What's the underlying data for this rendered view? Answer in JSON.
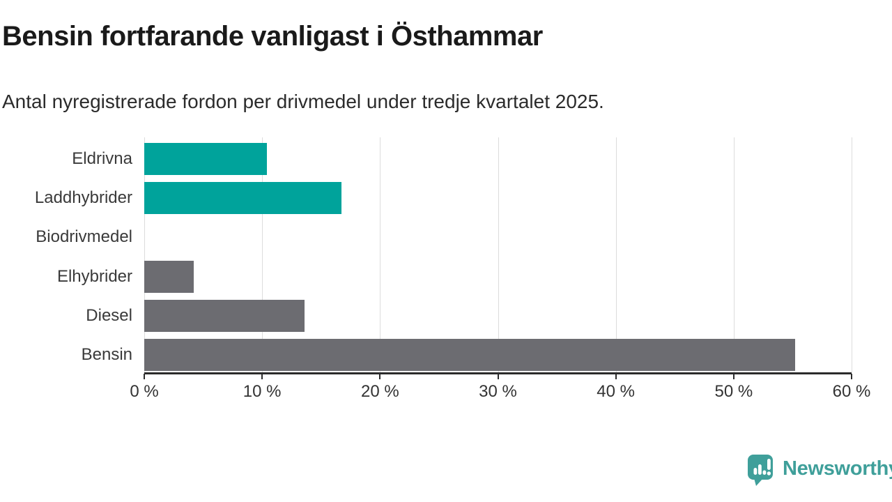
{
  "header": {
    "title": "Bensin fortfarande vanligast i Östhammar",
    "subtitle": "Antal nyregistrerade fordon per drivmedel under tredje kvartalet 2025."
  },
  "chart_data": {
    "type": "bar",
    "orientation": "horizontal",
    "title": "Bensin fortfarande vanligast i Östhammar",
    "subtitle": "Antal nyregistrerade fordon per drivmedel under tredje kvartalet 2025.",
    "categories": [
      "Eldrivna",
      "Laddhybrider",
      "Biodrivmedel",
      "Elhybrider",
      "Diesel",
      "Bensin"
    ],
    "values": [
      10.4,
      16.7,
      0,
      4.2,
      13.6,
      55.2
    ],
    "unit": "%",
    "bar_colors": [
      "#00a39b",
      "#00a39b",
      "#00a39b",
      "#6c6c71",
      "#6c6c71",
      "#6c6c71"
    ],
    "xlim": [
      0,
      60
    ],
    "x_ticks": [
      0,
      10,
      20,
      30,
      40,
      50,
      60
    ],
    "x_tick_labels": [
      "0 %",
      "10 %",
      "20 %",
      "30 %",
      "40 %",
      "50 %",
      "60 %"
    ],
    "grid": "vertical-light",
    "legend": "none"
  },
  "colors": {
    "teal": "#00a39b",
    "gray": "#6c6c71",
    "gridline": "#dcdcdc",
    "axis": "#2b2b2b",
    "logo_teal": "#3f9f9a"
  },
  "footer": {
    "brand": "Newsworthy",
    "logo_icon": "speech-bubble-bar-chart-exclamation"
  }
}
